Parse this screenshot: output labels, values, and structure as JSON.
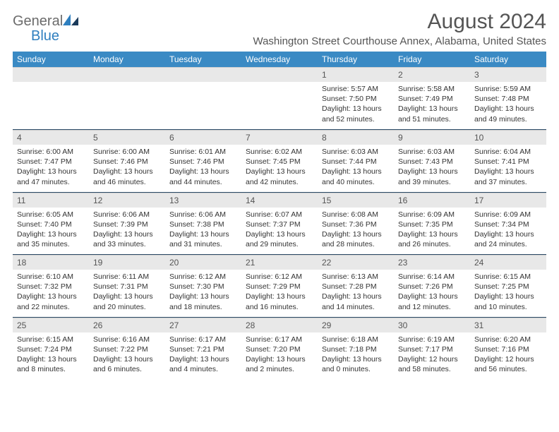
{
  "brand": {
    "name_part1": "General",
    "name_part2": "Blue",
    "color_gray": "#6b6b6b",
    "color_blue": "#2f7fbf"
  },
  "header": {
    "month_title": "August 2024",
    "location": "Washington Street Courthouse Annex, Alabama, United States"
  },
  "dayNames": [
    "Sunday",
    "Monday",
    "Tuesday",
    "Wednesday",
    "Thursday",
    "Friday",
    "Saturday"
  ],
  "colors": {
    "header_bg": "#3a8ac4",
    "header_text": "#ffffff",
    "daynum_bg": "#e8e8e8",
    "text": "#333333",
    "divider": "#2b4a66"
  },
  "weeks": [
    [
      {
        "num": "",
        "lines": []
      },
      {
        "num": "",
        "lines": []
      },
      {
        "num": "",
        "lines": []
      },
      {
        "num": "",
        "lines": []
      },
      {
        "num": "1",
        "lines": [
          "Sunrise: 5:57 AM",
          "Sunset: 7:50 PM",
          "Daylight: 13 hours",
          "and 52 minutes."
        ]
      },
      {
        "num": "2",
        "lines": [
          "Sunrise: 5:58 AM",
          "Sunset: 7:49 PM",
          "Daylight: 13 hours",
          "and 51 minutes."
        ]
      },
      {
        "num": "3",
        "lines": [
          "Sunrise: 5:59 AM",
          "Sunset: 7:48 PM",
          "Daylight: 13 hours",
          "and 49 minutes."
        ]
      }
    ],
    [
      {
        "num": "4",
        "lines": [
          "Sunrise: 6:00 AM",
          "Sunset: 7:47 PM",
          "Daylight: 13 hours",
          "and 47 minutes."
        ]
      },
      {
        "num": "5",
        "lines": [
          "Sunrise: 6:00 AM",
          "Sunset: 7:46 PM",
          "Daylight: 13 hours",
          "and 46 minutes."
        ]
      },
      {
        "num": "6",
        "lines": [
          "Sunrise: 6:01 AM",
          "Sunset: 7:46 PM",
          "Daylight: 13 hours",
          "and 44 minutes."
        ]
      },
      {
        "num": "7",
        "lines": [
          "Sunrise: 6:02 AM",
          "Sunset: 7:45 PM",
          "Daylight: 13 hours",
          "and 42 minutes."
        ]
      },
      {
        "num": "8",
        "lines": [
          "Sunrise: 6:03 AM",
          "Sunset: 7:44 PM",
          "Daylight: 13 hours",
          "and 40 minutes."
        ]
      },
      {
        "num": "9",
        "lines": [
          "Sunrise: 6:03 AM",
          "Sunset: 7:43 PM",
          "Daylight: 13 hours",
          "and 39 minutes."
        ]
      },
      {
        "num": "10",
        "lines": [
          "Sunrise: 6:04 AM",
          "Sunset: 7:41 PM",
          "Daylight: 13 hours",
          "and 37 minutes."
        ]
      }
    ],
    [
      {
        "num": "11",
        "lines": [
          "Sunrise: 6:05 AM",
          "Sunset: 7:40 PM",
          "Daylight: 13 hours",
          "and 35 minutes."
        ]
      },
      {
        "num": "12",
        "lines": [
          "Sunrise: 6:06 AM",
          "Sunset: 7:39 PM",
          "Daylight: 13 hours",
          "and 33 minutes."
        ]
      },
      {
        "num": "13",
        "lines": [
          "Sunrise: 6:06 AM",
          "Sunset: 7:38 PM",
          "Daylight: 13 hours",
          "and 31 minutes."
        ]
      },
      {
        "num": "14",
        "lines": [
          "Sunrise: 6:07 AM",
          "Sunset: 7:37 PM",
          "Daylight: 13 hours",
          "and 29 minutes."
        ]
      },
      {
        "num": "15",
        "lines": [
          "Sunrise: 6:08 AM",
          "Sunset: 7:36 PM",
          "Daylight: 13 hours",
          "and 28 minutes."
        ]
      },
      {
        "num": "16",
        "lines": [
          "Sunrise: 6:09 AM",
          "Sunset: 7:35 PM",
          "Daylight: 13 hours",
          "and 26 minutes."
        ]
      },
      {
        "num": "17",
        "lines": [
          "Sunrise: 6:09 AM",
          "Sunset: 7:34 PM",
          "Daylight: 13 hours",
          "and 24 minutes."
        ]
      }
    ],
    [
      {
        "num": "18",
        "lines": [
          "Sunrise: 6:10 AM",
          "Sunset: 7:32 PM",
          "Daylight: 13 hours",
          "and 22 minutes."
        ]
      },
      {
        "num": "19",
        "lines": [
          "Sunrise: 6:11 AM",
          "Sunset: 7:31 PM",
          "Daylight: 13 hours",
          "and 20 minutes."
        ]
      },
      {
        "num": "20",
        "lines": [
          "Sunrise: 6:12 AM",
          "Sunset: 7:30 PM",
          "Daylight: 13 hours",
          "and 18 minutes."
        ]
      },
      {
        "num": "21",
        "lines": [
          "Sunrise: 6:12 AM",
          "Sunset: 7:29 PM",
          "Daylight: 13 hours",
          "and 16 minutes."
        ]
      },
      {
        "num": "22",
        "lines": [
          "Sunrise: 6:13 AM",
          "Sunset: 7:28 PM",
          "Daylight: 13 hours",
          "and 14 minutes."
        ]
      },
      {
        "num": "23",
        "lines": [
          "Sunrise: 6:14 AM",
          "Sunset: 7:26 PM",
          "Daylight: 13 hours",
          "and 12 minutes."
        ]
      },
      {
        "num": "24",
        "lines": [
          "Sunrise: 6:15 AM",
          "Sunset: 7:25 PM",
          "Daylight: 13 hours",
          "and 10 minutes."
        ]
      }
    ],
    [
      {
        "num": "25",
        "lines": [
          "Sunrise: 6:15 AM",
          "Sunset: 7:24 PM",
          "Daylight: 13 hours",
          "and 8 minutes."
        ]
      },
      {
        "num": "26",
        "lines": [
          "Sunrise: 6:16 AM",
          "Sunset: 7:22 PM",
          "Daylight: 13 hours",
          "and 6 minutes."
        ]
      },
      {
        "num": "27",
        "lines": [
          "Sunrise: 6:17 AM",
          "Sunset: 7:21 PM",
          "Daylight: 13 hours",
          "and 4 minutes."
        ]
      },
      {
        "num": "28",
        "lines": [
          "Sunrise: 6:17 AM",
          "Sunset: 7:20 PM",
          "Daylight: 13 hours",
          "and 2 minutes."
        ]
      },
      {
        "num": "29",
        "lines": [
          "Sunrise: 6:18 AM",
          "Sunset: 7:18 PM",
          "Daylight: 13 hours",
          "and 0 minutes."
        ]
      },
      {
        "num": "30",
        "lines": [
          "Sunrise: 6:19 AM",
          "Sunset: 7:17 PM",
          "Daylight: 12 hours",
          "and 58 minutes."
        ]
      },
      {
        "num": "31",
        "lines": [
          "Sunrise: 6:20 AM",
          "Sunset: 7:16 PM",
          "Daylight: 12 hours",
          "and 56 minutes."
        ]
      }
    ]
  ]
}
